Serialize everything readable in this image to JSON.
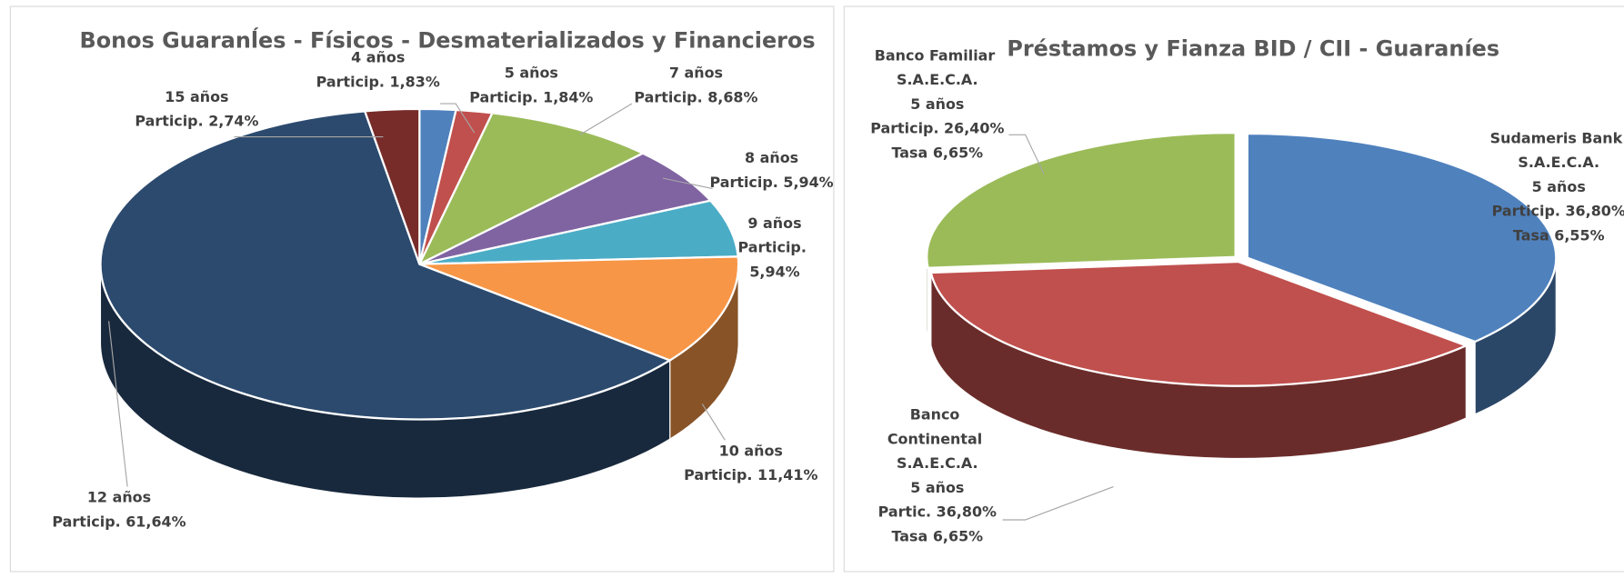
{
  "chart_data": [
    {
      "type": "pie",
      "title": "Bonos  Guaranĺes - Físicos - Desmaterializados y Financieros",
      "categories": [
        "4 años",
        "5 años",
        "7 años",
        "8 años",
        "9 años",
        "10 años",
        "12 años",
        "15 años"
      ],
      "values": [
        1.83,
        1.84,
        8.68,
        5.94,
        5.94,
        11.41,
        61.64,
        2.74
      ],
      "value_labels": [
        "Particip. 1,83%",
        "Particip. 1,84%",
        "Particip. 8,68%",
        "Particip. 5,94%",
        "Particip. 5,94%",
        "Particip. 11,41%",
        "Particip. 61,64%",
        "Particip. 2,74%"
      ],
      "colors": [
        "#4f81bd",
        "#c0504d",
        "#9bbb59",
        "#8064a2",
        "#4bacc6",
        "#f79646",
        "#2c4a6e",
        "#772c2a"
      ]
    },
    {
      "type": "pie",
      "title": "Préstamos y Fianza BID / CII - Guaraníes",
      "categories": [
        "Sudameris Bank S.A.E.C.A.",
        "Banco Continental S.A.E.C.A.",
        "Banco Familiar S.A.E.C.A."
      ],
      "terms": [
        "5 años",
        "5 años",
        "5 años"
      ],
      "values": [
        36.8,
        36.8,
        26.4
      ],
      "value_labels": [
        "Particip. 36,80%",
        "Partic. 36,80%",
        "Particip. 26,40%"
      ],
      "rates": [
        "Tasa 6,55%",
        "Tasa 6,65%",
        "Tasa 6,65%"
      ],
      "colors": [
        "#4f81bd",
        "#c0504d",
        "#9bbb59"
      ]
    }
  ]
}
